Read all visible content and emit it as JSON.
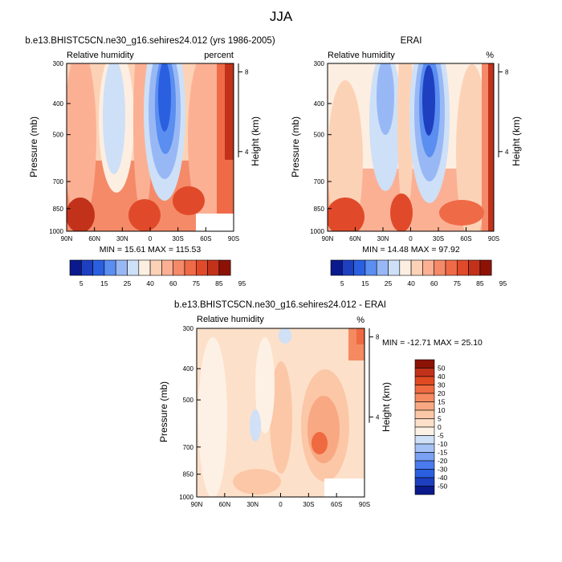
{
  "figure": {
    "title": "JJA"
  },
  "colors": {
    "rh_palette": [
      "#0a1a8c",
      "#1e3fbf",
      "#2a5fe0",
      "#5a8ef0",
      "#98b8f5",
      "#cde0f7",
      "#fdeee2",
      "#fcd2b6",
      "#fbb094",
      "#f58a68",
      "#ef6a47",
      "#e04a2a",
      "#c2321b",
      "#8c1206"
    ],
    "diff_palette": [
      "#0a1a8c",
      "#1e3fbf",
      "#2a5fe0",
      "#4a7aee",
      "#7aa0f2",
      "#a6c2f5",
      "#cfe0f7",
      "#fdf1e6",
      "#fde0c9",
      "#fbc7a6",
      "#f8a882",
      "#f58a60",
      "#ef6a40",
      "#e04a22",
      "#c2321b",
      "#8c1206"
    ]
  },
  "chart_data": [
    {
      "type": "heatmap",
      "title": "b.e13.BHISTC5CN.ne30_g16.sehires24.012 (yrs 1986-2005)",
      "left_label": "Relative humidity",
      "right_label": "percent",
      "ylabel": "Pressure (mb)",
      "ylabel_right": "Height (km)",
      "xticks": [
        "90N",
        "60N",
        "30N",
        "0",
        "30S",
        "60S",
        "90S"
      ],
      "yticks": [
        300,
        400,
        500,
        700,
        850,
        1000
      ],
      "height_ticks": [
        8,
        4
      ],
      "stats": "MIN = 15.61  MAX = 115.53",
      "colorbar_labels": [
        "5",
        "15",
        "25",
        "40",
        "60",
        "75",
        "85",
        "95"
      ],
      "colorbar_levels": [
        5,
        10,
        15,
        20,
        25,
        30,
        40,
        50,
        60,
        70,
        75,
        80,
        85,
        90,
        95
      ],
      "range": [
        15.61,
        115.53
      ]
    },
    {
      "type": "heatmap",
      "title": "ERAI",
      "left_label": "Relative humidity",
      "right_label": "%",
      "ylabel": "Pressure (mb)",
      "ylabel_right": "Height (km)",
      "xticks": [
        "90N",
        "60N",
        "30N",
        "0",
        "30S",
        "60S",
        "90S"
      ],
      "yticks": [
        300,
        400,
        500,
        700,
        850,
        1000
      ],
      "height_ticks": [
        8,
        4
      ],
      "stats": "MIN = 14.48  MAX = 97.92",
      "colorbar_labels": [
        "5",
        "15",
        "25",
        "40",
        "60",
        "75",
        "85",
        "95"
      ],
      "range": [
        14.48,
        97.92
      ]
    },
    {
      "type": "heatmap",
      "title": "b.e13.BHISTC5CN.ne30_g16.sehires24.012 - ERAI",
      "left_label": "Relative humidity",
      "right_label": "%",
      "ylabel": "Pressure (mb)",
      "ylabel_right": "Height (km)",
      "xticks": [
        "90N",
        "60N",
        "30N",
        "0",
        "30S",
        "60S",
        "90S"
      ],
      "yticks": [
        300,
        400,
        500,
        700,
        850,
        1000
      ],
      "height_ticks": [
        8,
        4
      ],
      "stats": "MIN = -12.71  MAX =  25.10",
      "colorbar_labels": [
        "50",
        "40",
        "30",
        "20",
        "15",
        "10",
        "5",
        "0",
        "-5",
        "-10",
        "-15",
        "-20",
        "-30",
        "-40",
        "-50"
      ],
      "range": [
        -12.71,
        25.1
      ]
    }
  ]
}
